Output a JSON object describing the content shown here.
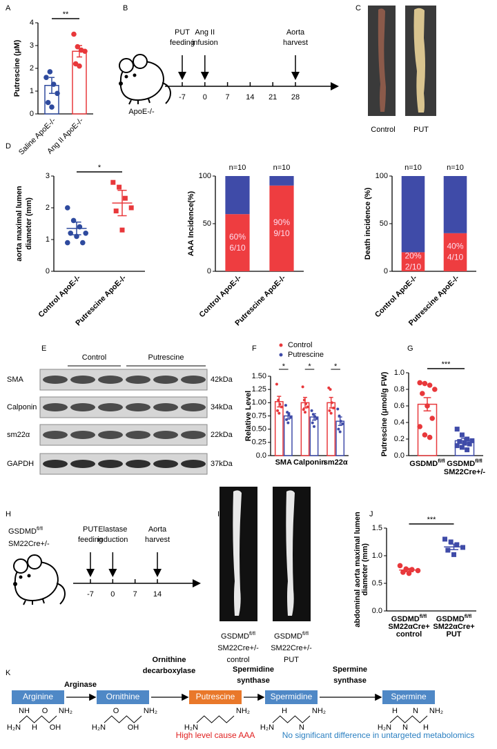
{
  "panel_labels": [
    "A",
    "B",
    "C",
    "D",
    "E",
    "F",
    "G",
    "H",
    "I",
    "J",
    "K"
  ],
  "chart_data": [
    {
      "type": "bar",
      "ylabel": "Putrescine (μM)",
      "categories": [
        "Saline ApoE-/-",
        "Ang II ApoE-/-"
      ],
      "values": [
        1.25,
        2.75
      ],
      "errors": [
        0.35,
        0.25
      ],
      "points": [
        [
          1.6,
          1.85,
          1.3,
          0.9,
          0.5,
          0.3
        ],
        [
          3.5,
          2.95,
          2.8,
          2.75,
          2.2,
          2.1
        ]
      ],
      "colors": [
        "#2e4a9e",
        "#e8383b"
      ],
      "ylim": [
        0,
        4
      ],
      "yticks": [
        0,
        1,
        2,
        3,
        4
      ],
      "significance": "**",
      "rotate_labels": true
    },
    {
      "type": "dot",
      "ylabel": [
        "aorta maximal lumen",
        "diameter (mm)"
      ],
      "categories": [
        "Control ApoE-/-",
        "Putrescine ApoE-/-"
      ],
      "values": [
        1.35,
        2.15
      ],
      "errors": [
        0.2,
        0.4
      ],
      "points": [
        [
          2.0,
          1.6,
          1.4,
          1.2,
          1.2,
          1.1,
          0.9,
          0.9
        ],
        [
          2.8,
          2.65,
          2.3,
          2.0,
          1.9,
          1.3
        ]
      ],
      "colors": [
        "#2e4a9e",
        "#e8383b"
      ],
      "markers": [
        "circle",
        "square"
      ],
      "ylim": [
        0,
        3
      ],
      "yticks": [
        0,
        1,
        2,
        3
      ],
      "significance": "*",
      "rotate_labels": true
    },
    {
      "type": "stacked_bar",
      "ylabel": "AAA Incidence(%)",
      "categories": [
        "Control ApoE-/-",
        "Putrescine ApoE-/-"
      ],
      "series": [
        {
          "color": "#ee3d40",
          "values": [
            60,
            90
          ],
          "value_labels": [
            "60%",
            "90%"
          ],
          "fractions": [
            "6/10",
            "9/10"
          ]
        },
        {
          "color": "#3f4ba8",
          "values": [
            40,
            10
          ]
        }
      ],
      "annotations": [
        "n=10",
        "n=10"
      ],
      "ylim": [
        0,
        100
      ],
      "yticks": [
        0,
        50,
        100
      ],
      "rotate_labels": true
    },
    {
      "type": "stacked_bar",
      "ylabel": "Death incidence (%)",
      "categories": [
        "Control ApoE-/-",
        "Putrescine ApoE-/-"
      ],
      "series": [
        {
          "color": "#ee3d40",
          "values": [
            20,
            40
          ],
          "value_labels": [
            "20%",
            "40%"
          ],
          "fractions": [
            "2/10",
            "4/10"
          ]
        },
        {
          "color": "#3f4ba8",
          "values": [
            80,
            60
          ]
        }
      ],
      "annotations": [
        "n=10",
        "n=10"
      ],
      "ylim": [
        0,
        100
      ],
      "yticks": [
        0,
        50,
        100
      ],
      "rotate_labels": true
    },
    {
      "type": "bar",
      "ylabel": "Relative Level",
      "categories": [
        "SMA",
        "Calponin",
        "sm22α"
      ],
      "series": [
        {
          "name": "Control",
          "color": "#e8383b",
          "values": [
            1.02,
            1.0,
            1.0
          ],
          "errors": [
            0.1,
            0.1,
            0.1
          ],
          "points": [
            [
              1.35,
              1.05,
              0.97,
              0.92,
              0.85,
              0.8
            ],
            [
              1.3,
              1.05,
              0.98,
              0.92,
              0.87,
              0.82
            ],
            [
              1.28,
              1.25,
              1.0,
              0.9,
              0.85,
              0.8
            ]
          ]
        },
        {
          "name": "Putrescine",
          "color": "#3f4ba8",
          "values": [
            0.75,
            0.73,
            0.65
          ],
          "errors": [
            0.06,
            0.06,
            0.08
          ],
          "points": [
            [
              0.95,
              0.82,
              0.78,
              0.72,
              0.68,
              0.62
            ],
            [
              0.85,
              0.78,
              0.74,
              0.7,
              0.62,
              0.55
            ],
            [
              0.88,
              0.75,
              0.65,
              0.6,
              0.5,
              0.45
            ]
          ]
        }
      ],
      "ylim": [
        0,
        1.5
      ],
      "yticks": [
        {
          "value": 0,
          "label": "0.0"
        },
        0.25,
        {
          "value": 0.5,
          "label": "0.50"
        },
        0.75,
        {
          "value": 1,
          "label": "1.00"
        },
        1.25,
        {
          "value": 1.5,
          "label": "1.50"
        }
      ],
      "significance": [
        "*",
        "*",
        "*"
      ],
      "legend": "top"
    },
    {
      "type": "bar",
      "ylabel": "Putrescine (μmol/g FW)",
      "categories": [
        [
          {
            "text": "GSDMD",
            "sup": "fl/fl"
          }
        ],
        [
          {
            "text": "GSDMD",
            "sup": "fl/fl"
          },
          "SM22Cre+/-"
        ]
      ],
      "values": [
        0.62,
        0.18
      ],
      "errors": [
        0.08,
        0.03
      ],
      "points": [
        [
          0.88,
          0.87,
          0.85,
          0.8,
          0.75,
          0.6,
          0.45,
          0.35,
          0.25,
          0.22
        ],
        [
          0.32,
          0.25,
          0.2,
          0.18,
          0.17,
          0.15,
          0.14,
          0.12,
          0.1,
          0.07
        ]
      ],
      "colors": [
        "#e8383b",
        "#3f4ba8"
      ],
      "markers": [
        "circle",
        "square"
      ],
      "ylim": [
        0,
        1
      ],
      "yticks": [
        {
          "value": 0,
          "label": "0.0"
        },
        0.2,
        0.4,
        0.6,
        0.8,
        {
          "value": 1,
          "label": "1.0"
        }
      ],
      "significance": "***"
    },
    {
      "type": "dot",
      "ylabel": [
        "abdominal aorta maximal lumen",
        "diameter (mm)"
      ],
      "categories": [
        [
          {
            "text": "GSDMD",
            "sup": "fl/fl"
          },
          "SM22αCre+",
          "control"
        ],
        [
          {
            "text": "GSDMD",
            "sup": "fl/fl"
          },
          "SM22αCre+",
          "PUT"
        ]
      ],
      "values": [
        0.74,
        1.16
      ],
      "errors": [
        0.03,
        0.05
      ],
      "points": [
        [
          0.82,
          0.76,
          0.75,
          0.73,
          0.7,
          0.68
        ],
        [
          1.3,
          1.25,
          1.2,
          1.15,
          1.1,
          1.02
        ]
      ],
      "colors": [
        "#e8383b",
        "#3f4ba8"
      ],
      "markers": [
        "circle",
        "square"
      ],
      "ylim": [
        0,
        1.5
      ],
      "yticks": [
        {
          "value": 0,
          "label": "0.0"
        },
        0.5,
        {
          "value": 1,
          "label": "1.0"
        },
        1.5
      ],
      "significance": "***"
    }
  ],
  "timeline_b": {
    "strain": "ApoE-/-",
    "events": [
      [
        "PUT",
        "feeding"
      ],
      [
        "Ang II",
        "infusion"
      ],
      [
        "Aorta",
        "harvest"
      ]
    ],
    "ticks": [
      -7,
      0,
      7,
      14,
      21,
      28
    ]
  },
  "images_c": {
    "captions": [
      "Control",
      "PUT"
    ]
  },
  "blot_e": {
    "groups": [
      "Control",
      "Putrescine"
    ],
    "bands": [
      "SMA",
      "Calponin",
      "sm22α",
      "GAPDH"
    ],
    "sizes": [
      "42kDa",
      "34kDa",
      "22kDa",
      "37kDa"
    ]
  },
  "timeline_h": {
    "strain": [
      {
        "text": "GSDMD",
        "sup": "fl/fl"
      },
      "SM22Cre+/-"
    ],
    "events": [
      [
        "PUT",
        "feeding"
      ],
      [
        "Elastase",
        "induction"
      ],
      [
        "Aorta",
        "harvest"
      ]
    ],
    "ticks": [
      -7,
      0,
      7,
      14
    ]
  },
  "images_i": {
    "captions": [
      [
        {
          "text": "GSDMD",
          "sup": "fl/fl"
        },
        "SM22Cre+/-",
        "control"
      ],
      [
        {
          "text": "GSDMD",
          "sup": "fl/fl"
        },
        "SM22Cre+/-",
        "PUT"
      ]
    ]
  },
  "pathway_k": {
    "metabolites": [
      "Arginine",
      "Ornithine",
      "Putrescine",
      "Spermidine",
      "Spermine"
    ],
    "enzymes": [
      [
        "Arginase"
      ],
      [
        "Ornithine",
        "decarboxylase"
      ],
      [
        "Spermidine",
        "synthase"
      ],
      [
        "Spermine",
        "synthase"
      ]
    ],
    "notes": [
      "High level cause AAA",
      "No significant difference in untargeted metabolomics"
    ],
    "structure_labels": [
      [
        "H₂N",
        "NH",
        "H",
        "O",
        "OH",
        "NH₂"
      ],
      [
        "H₂N",
        "O",
        "OH",
        "NH₂"
      ],
      [
        "H₂N",
        "NH₂"
      ],
      [
        "H₂N",
        "H",
        "N",
        "NH₂"
      ],
      [
        "H₂N",
        "H",
        "N",
        "N",
        "H",
        "NH₂"
      ]
    ]
  }
}
